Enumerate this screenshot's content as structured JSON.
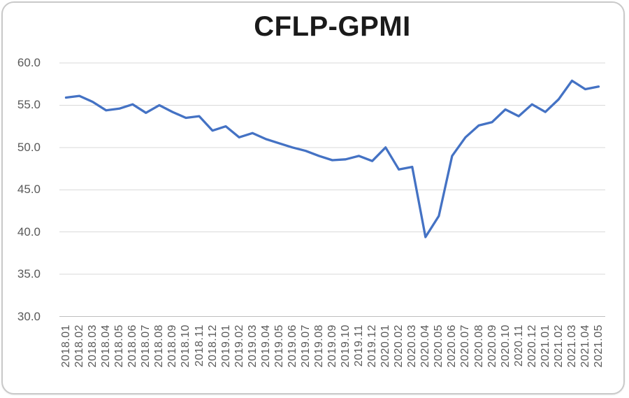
{
  "chart_data": {
    "type": "line",
    "title": "CFLP-GPMI",
    "series_name": "CFLP-GPMI",
    "legend": "none",
    "grid": "horizontal",
    "ylim": [
      30.0,
      60.0
    ],
    "yticks": [
      30,
      35,
      40,
      45,
      50,
      55,
      60
    ],
    "ytick_labels": [
      "30.0",
      "35.0",
      "40.0",
      "45.0",
      "50.0",
      "55.0",
      "60.0"
    ],
    "categories": [
      "2018.01",
      "2018.02",
      "2018.03",
      "2018.04",
      "2018.05",
      "2018.06",
      "2018.07",
      "2018.08",
      "2018.09",
      "2018.10",
      "2018.11",
      "2018.12",
      "2019.01",
      "2019.02",
      "2019.03",
      "2019.04",
      "2019.05",
      "2019.06",
      "2019.07",
      "2019.08",
      "2019.09",
      "2019.10",
      "2019.11",
      "2019.12",
      "2020.01",
      "2020.02",
      "2020.03",
      "2020.04",
      "2020.05",
      "2020.06",
      "2020.07",
      "2020.08",
      "2020.09",
      "2020.10",
      "2020.11",
      "2020.12",
      "2021.01",
      "2021.02",
      "2021.03",
      "2021.04",
      "2021.05"
    ],
    "values": [
      55.9,
      56.1,
      55.4,
      54.4,
      54.6,
      55.1,
      54.1,
      55.0,
      54.2,
      53.5,
      53.7,
      52.0,
      52.5,
      51.2,
      51.7,
      51.0,
      50.5,
      50.0,
      49.6,
      49.0,
      48.5,
      48.6,
      49.0,
      48.4,
      50.0,
      47.4,
      47.7,
      39.4,
      41.9,
      49.0,
      51.2,
      52.6,
      53.0,
      54.5,
      53.7,
      55.1,
      54.2,
      55.7,
      57.9,
      56.9,
      57.2
    ],
    "colors": {
      "line": "#4472C4",
      "gridline": "#D9D9D9",
      "axis_line": "#BFBFBF",
      "tick_label": "#595959",
      "title": "#1A1A1A",
      "background": "#FFFFFF",
      "border": "#C9C9C9"
    }
  }
}
